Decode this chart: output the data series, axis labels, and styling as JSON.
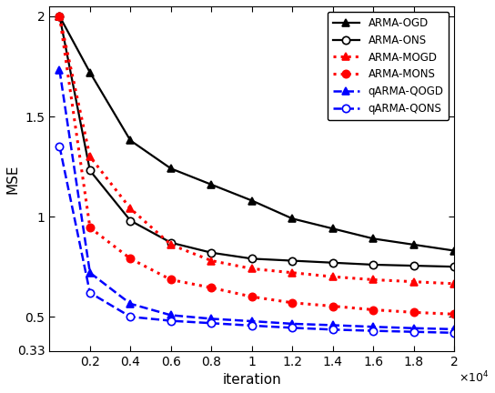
{
  "title": "",
  "xlabel": "iteration",
  "ylabel": "MSE",
  "xlim": [
    0,
    20000
  ],
  "ylim": [
    0.33,
    2.05
  ],
  "xtick_vals": [
    2000,
    4000,
    6000,
    8000,
    10000,
    12000,
    14000,
    16000,
    18000,
    20000
  ],
  "xtick_labels": [
    "0.2",
    "0.4",
    "0.6",
    "0.8",
    "1",
    "1.2",
    "1.4",
    "1.6",
    "1.8",
    "2"
  ],
  "ytick_vals": [
    0.5,
    1.0,
    1.5,
    2.0
  ],
  "ytick_labels": [
    "0.5",
    "1",
    "1.5",
    "2"
  ],
  "series": [
    {
      "label": "ARMA-OGD",
      "color": "#000000",
      "linestyle": "-",
      "linewidth": 1.6,
      "marker": "^",
      "markersize": 6,
      "markerfacecolor": "#000000",
      "markeredgecolor": "#000000",
      "x": [
        500,
        2000,
        4000,
        6000,
        8000,
        10000,
        12000,
        14000,
        16000,
        18000,
        20000
      ],
      "y": [
        2.0,
        1.72,
        1.38,
        1.24,
        1.16,
        1.08,
        0.99,
        0.94,
        0.89,
        0.86,
        0.83
      ]
    },
    {
      "label": "ARMA-ONS",
      "color": "#000000",
      "linestyle": "-",
      "linewidth": 1.6,
      "marker": "o",
      "markersize": 6,
      "markerfacecolor": "#ffffff",
      "markeredgecolor": "#000000",
      "x": [
        500,
        2000,
        4000,
        6000,
        8000,
        10000,
        12000,
        14000,
        16000,
        18000,
        20000
      ],
      "y": [
        2.0,
        1.23,
        0.98,
        0.87,
        0.82,
        0.79,
        0.78,
        0.77,
        0.76,
        0.755,
        0.75
      ]
    },
    {
      "label": "ARMA-MOGD",
      "color": "#ff0000",
      "linestyle": ":",
      "linewidth": 2.2,
      "marker": "^",
      "markersize": 6,
      "markerfacecolor": "#ff0000",
      "markeredgecolor": "#ff0000",
      "x": [
        500,
        2000,
        4000,
        6000,
        8000,
        10000,
        12000,
        14000,
        16000,
        18000,
        20000
      ],
      "y": [
        2.0,
        1.3,
        1.04,
        0.86,
        0.78,
        0.74,
        0.72,
        0.7,
        0.685,
        0.675,
        0.665
      ]
    },
    {
      "label": "ARMA-MONS",
      "color": "#ff0000",
      "linestyle": ":",
      "linewidth": 2.2,
      "marker": "o",
      "markersize": 6,
      "markerfacecolor": "#ff0000",
      "markeredgecolor": "#ff0000",
      "x": [
        500,
        2000,
        4000,
        6000,
        8000,
        10000,
        12000,
        14000,
        16000,
        18000,
        20000
      ],
      "y": [
        2.0,
        0.945,
        0.79,
        0.685,
        0.645,
        0.6,
        0.57,
        0.553,
        0.535,
        0.522,
        0.513
      ]
    },
    {
      "label": "qARMA-QOGD",
      "color": "#0000ff",
      "linestyle": "--",
      "linewidth": 1.8,
      "marker": "^",
      "markersize": 6,
      "markerfacecolor": "#0000ff",
      "markeredgecolor": "#0000ff",
      "x": [
        500,
        2000,
        4000,
        6000,
        8000,
        10000,
        12000,
        14000,
        16000,
        18000,
        20000
      ],
      "y": [
        1.73,
        0.72,
        0.565,
        0.508,
        0.49,
        0.478,
        0.465,
        0.458,
        0.45,
        0.443,
        0.438
      ]
    },
    {
      "label": "qARMA-QONS",
      "color": "#0000ff",
      "linestyle": "--",
      "linewidth": 1.8,
      "marker": "o",
      "markersize": 6,
      "markerfacecolor": "#ffffff",
      "markeredgecolor": "#0000ff",
      "x": [
        500,
        2000,
        4000,
        6000,
        8000,
        10000,
        12000,
        14000,
        16000,
        18000,
        20000
      ],
      "y": [
        1.35,
        0.62,
        0.5,
        0.48,
        0.468,
        0.456,
        0.445,
        0.436,
        0.43,
        0.425,
        0.42
      ]
    }
  ],
  "legend_loc": "upper right",
  "legend_fontsize": 8.5,
  "axis_fontsize": 11,
  "tick_fontsize": 10,
  "fig_width": 5.44,
  "fig_height": 4.32,
  "dpi": 100
}
